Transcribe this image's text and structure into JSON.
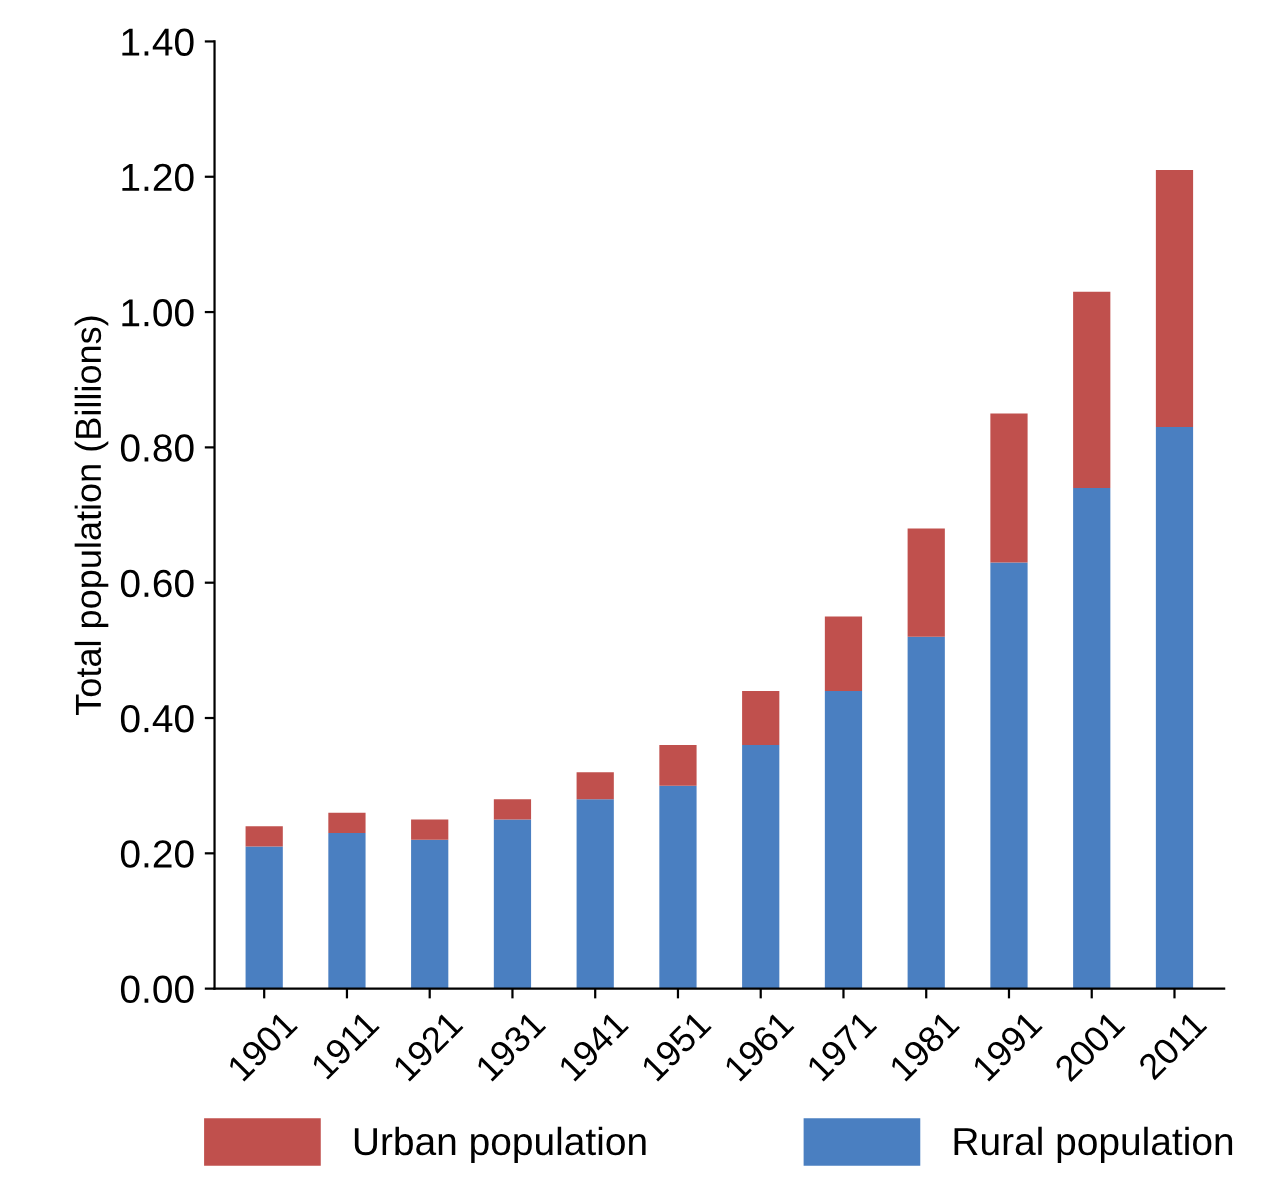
{
  "chart_data": {
    "type": "bar",
    "stacked": true,
    "ylabel": "Total population (Billions)",
    "categories": [
      "1901",
      "1911",
      "1921",
      "1931",
      "1941",
      "1951",
      "1961",
      "1971",
      "1981",
      "1991",
      "2001",
      "2011"
    ],
    "series": [
      {
        "name": "Rural population",
        "color": "#4a7fc1",
        "values": [
          0.21,
          0.23,
          0.22,
          0.25,
          0.28,
          0.3,
          0.36,
          0.44,
          0.52,
          0.63,
          0.74,
          0.83
        ]
      },
      {
        "name": "Urban population",
        "color": "#c0504d",
        "values": [
          0.03,
          0.03,
          0.03,
          0.03,
          0.04,
          0.06,
          0.08,
          0.11,
          0.16,
          0.22,
          0.29,
          0.38
        ]
      }
    ],
    "ylim": [
      0,
      1.4
    ],
    "yticks": [
      {
        "value": 0,
        "label": "0.00"
      },
      {
        "value": 0.2,
        "label": "0.20"
      },
      {
        "value": 0.4,
        "label": "0.40"
      },
      {
        "value": 0.6,
        "label": "0.60"
      },
      {
        "value": 0.8,
        "label": "0.80"
      },
      {
        "value": 1.0,
        "label": "1.00"
      },
      {
        "value": 1.2,
        "label": "1.20"
      },
      {
        "value": 1.4,
        "label": "1.40"
      }
    ],
    "grid": false,
    "legend": "bottom"
  }
}
